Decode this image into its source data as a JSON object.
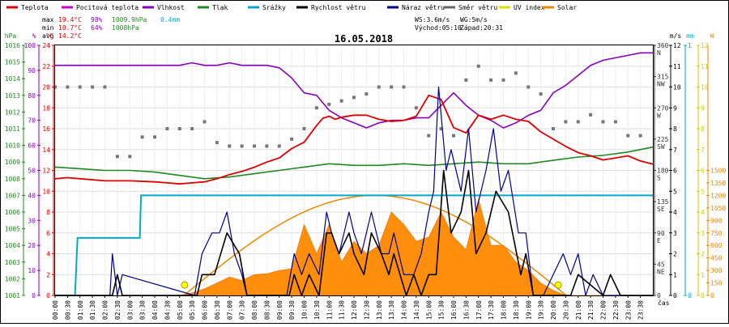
{
  "chart_data": {
    "type": "line",
    "title": "16.05.2018",
    "legend": [
      {
        "name": "Teplota",
        "color": "#dd0000"
      },
      {
        "name": "Pocitová teplota",
        "color": "#cc00cc"
      },
      {
        "name": "Vlhkost",
        "color": "#8800bb"
      },
      {
        "name": "Tlak",
        "color": "#228822"
      },
      {
        "name": "Srážky",
        "color": "#00aacc"
      },
      {
        "name": "Rychlost větru",
        "color": "#000000"
      },
      {
        "name": "Náraz větru",
        "color": "#000088"
      },
      {
        "name": "Směr větru",
        "color": "#666666"
      },
      {
        "name": "UV index",
        "color": "#dddd00"
      },
      {
        "name": "Solar",
        "color": "#ee8800"
      }
    ],
    "stats": {
      "max_label": "max",
      "max_temp": "19.4°C",
      "max_hum": "98%",
      "max_press": "1009.9hPa",
      "max_rain": "0.4mm",
      "min_label": "min",
      "min_temp": "10.7°C",
      "min_hum": "64%",
      "min_press": "1008hPa",
      "avg_label": "avg",
      "avg_temp": "14.2°C"
    },
    "info": {
      "ws": "WS:3.6m/s",
      "wg": "WG:5m/s",
      "sunrise": "Východ:05:10",
      "sunset": "Západ:20:31"
    },
    "axes": {
      "hpa_unit": "hPa",
      "pct_unit": "%",
      "c_unit": "°C",
      "ms_unit": "m/s",
      "mm_unit": "mm",
      "w_unit": "W",
      "hpa": [
        "1001",
        "1002",
        "1003",
        "1004",
        "1005",
        "1006",
        "1007",
        "1008",
        "1009",
        "1010",
        "1011",
        "1012",
        "1013",
        "1014",
        "1015",
        "1016"
      ],
      "pct": [
        "0",
        "10",
        "20",
        "30",
        "40",
        "50",
        "60",
        "70",
        "80",
        "90",
        "100"
      ],
      "temp": [
        "0",
        "2",
        "4",
        "6",
        "8",
        "10",
        "12",
        "14",
        "16",
        "18",
        "20",
        "22",
        "24"
      ],
      "dir": [
        "0",
        "45",
        "90",
        "135",
        "180",
        "225",
        "270",
        "315",
        "360"
      ],
      "dir_names": [
        "",
        "NE",
        "E",
        "SE",
        "S",
        "SW",
        "W",
        "NW",
        "N"
      ],
      "ms": [
        "0",
        "1",
        "2",
        "3",
        "4",
        "5",
        "6",
        "7",
        "8",
        "9",
        "10",
        "11",
        "12"
      ],
      "mm": [
        "0",
        "1"
      ],
      "solar": [
        "0",
        "150",
        "300",
        "450",
        "600",
        "750",
        "900",
        "1050",
        "1200",
        "1350",
        "1500"
      ],
      "uv": [
        "0",
        "1",
        "2",
        "3",
        "4",
        "5",
        "6",
        "7",
        "8",
        "9",
        "10",
        "11",
        "12"
      ],
      "time": [
        "00:00",
        "00:30",
        "01:00",
        "01:30",
        "02:00",
        "02:30",
        "03:00",
        "03:30",
        "04:00",
        "04:30",
        "05:00",
        "05:30",
        "06:00",
        "06:30",
        "07:00",
        "07:30",
        "08:00",
        "08:30",
        "09:00",
        "09:30",
        "10:00",
        "10:30",
        "11:00",
        "11:30",
        "12:00",
        "12:30",
        "13:00",
        "13:30",
        "14:00",
        "14:30",
        "15:00",
        "15:30",
        "16:00",
        "16:30",
        "17:00",
        "17:30",
        "18:00",
        "18:30",
        "19:00",
        "19:30",
        "20:00",
        "20:30",
        "21:00",
        "21:30",
        "22:00",
        "22:30",
        "23:00",
        "23:30"
      ],
      "cas": "čas"
    },
    "x_range": [
      0,
      24
    ],
    "temperature": {
      "x": [
        0,
        0.5,
        1,
        2,
        3,
        4,
        4.5,
        5,
        5.5,
        6,
        6.5,
        7,
        7.5,
        8,
        8.5,
        9,
        9.5,
        10,
        10.5,
        10.75,
        11,
        11.25,
        11.5,
        12,
        12.5,
        13,
        13.5,
        14,
        14.5,
        15,
        15.5,
        16,
        16.5,
        17,
        17.5,
        18,
        18.5,
        19,
        19.5,
        20,
        20.5,
        21,
        21.5,
        22,
        22.5,
        23,
        23.5,
        24
      ],
      "y": [
        11.2,
        11.3,
        11.2,
        11.0,
        11.0,
        10.9,
        10.8,
        10.7,
        10.8,
        10.9,
        11.2,
        11.6,
        11.9,
        12.3,
        12.8,
        13.2,
        14.1,
        14.7,
        16.3,
        17.0,
        17.2,
        16.9,
        17.1,
        17.3,
        17.3,
        16.9,
        16.7,
        16.8,
        17.2,
        19.2,
        18.8,
        16.1,
        15.6,
        17.3,
        16.9,
        17.3,
        16.9,
        16.7,
        15.7,
        15.0,
        14.3,
        13.7,
        13.4,
        13.0,
        13.2,
        13.4,
        12.9,
        12.6
      ]
    },
    "humidity": {
      "x": [
        0,
        1,
        2,
        3,
        4,
        5,
        5.5,
        6,
        6.5,
        7,
        7.5,
        8,
        8.5,
        9,
        9.5,
        10,
        10.5,
        11,
        11.5,
        12,
        12.5,
        13,
        13.5,
        14,
        14.5,
        15,
        15.5,
        16,
        16.5,
        17,
        17.5,
        18,
        18.5,
        19,
        19.5,
        20,
        20.5,
        21,
        21.5,
        22,
        22.5,
        23,
        23.5,
        24
      ],
      "y": [
        92,
        92,
        92,
        92,
        92,
        92,
        93,
        92,
        92,
        93,
        92,
        92,
        92,
        91,
        87,
        81,
        80,
        74,
        71,
        69,
        67,
        69,
        70,
        70,
        71,
        71,
        76,
        81,
        76,
        72,
        70,
        67,
        69,
        72,
        74,
        81,
        84,
        88,
        92,
        94,
        95,
        96,
        97,
        97
      ]
    },
    "pressure": {
      "x": [
        0,
        1,
        2,
        3,
        4,
        5,
        6,
        7,
        8,
        9,
        10,
        11,
        12,
        13,
        14,
        15,
        16,
        17,
        18,
        19,
        20,
        21,
        22,
        23,
        24
      ],
      "y": [
        1008.7,
        1008.6,
        1008.5,
        1008.5,
        1008.4,
        1008.2,
        1008.0,
        1008.1,
        1008.3,
        1008.5,
        1008.7,
        1008.9,
        1008.8,
        1008.8,
        1008.9,
        1008.8,
        1008.9,
        1009.0,
        1008.9,
        1008.9,
        1009.1,
        1009.3,
        1009.4,
        1009.6,
        1009.9
      ]
    },
    "rain_total_mm": {
      "x": [
        0,
        0.8,
        0.9,
        3.4,
        3.45,
        24
      ],
      "y": [
        0,
        0,
        0.23,
        0.23,
        0.4,
        0.4
      ]
    },
    "wind_speed": {
      "x": [
        0,
        2.3,
        2.5,
        2.7,
        5.7,
        5.9,
        6.4,
        6.9,
        7.4,
        7.7,
        9.4,
        9.6,
        9.9,
        10.2,
        10.6,
        10.9,
        11.1,
        11.4,
        11.8,
        12.0,
        12.4,
        12.7,
        13.1,
        13.4,
        13.6,
        14.1,
        14.4,
        14.7,
        15.0,
        15.3,
        15.6,
        15.9,
        16.3,
        16.6,
        16.9,
        17.3,
        17.7,
        18.2,
        18.7,
        18.9,
        19.2,
        20.0,
        20.7,
        21.0,
        22.0,
        22.3,
        22.7,
        24
      ],
      "y": [
        0,
        0,
        1,
        0,
        0,
        1,
        1,
        3,
        2,
        0,
        0,
        1,
        0,
        1,
        0,
        3,
        3,
        2,
        3,
        2,
        1,
        3,
        2,
        1,
        2,
        0,
        1,
        0,
        1,
        1,
        6,
        3,
        4,
        6,
        2,
        3,
        5,
        4,
        1,
        2,
        0,
        0,
        0,
        1,
        0,
        1,
        0,
        0
      ]
    },
    "wind_gust": {
      "x": [
        0,
        2.2,
        2.3,
        2.5,
        2.7,
        5.6,
        5.9,
        6.3,
        6.6,
        6.9,
        7.2,
        7.5,
        7.7,
        9.3,
        9.6,
        9.9,
        10.2,
        10.6,
        10.9,
        11.1,
        11.4,
        11.8,
        12.0,
        12.3,
        12.7,
        13.1,
        13.4,
        13.6,
        14.0,
        14.4,
        14.7,
        15.0,
        15.2,
        15.4,
        15.7,
        15.9,
        16.3,
        16.6,
        16.9,
        17.3,
        17.6,
        17.9,
        18.2,
        18.6,
        18.9,
        19.2,
        19.6,
        20.0,
        20.4,
        20.7,
        21.0,
        21.3,
        21.6,
        22.0,
        24
      ],
      "y": [
        0,
        0,
        2,
        0,
        1,
        0,
        2,
        3,
        3,
        4,
        2,
        1,
        0,
        0,
        2,
        1,
        2,
        1,
        4,
        3,
        2,
        4,
        3,
        2,
        4,
        2,
        2,
        3,
        1,
        1,
        2,
        4,
        5,
        10,
        6,
        7,
        5,
        8,
        4,
        6,
        8,
        5,
        6,
        3,
        3,
        0,
        0,
        1,
        2,
        1,
        2,
        0,
        1,
        0,
        0
      ]
    },
    "solar": {
      "x": [
        0,
        5.0,
        5.5,
        6,
        6.5,
        7,
        7.5,
        8,
        8.5,
        9,
        9.5,
        10,
        10.5,
        11,
        11.5,
        12,
        12.5,
        13,
        13.5,
        14,
        14.5,
        15,
        15.5,
        16,
        16.5,
        17,
        17.5,
        18,
        18.5,
        19,
        19.5,
        20,
        20.5,
        24
      ],
      "y": [
        0,
        0,
        30,
        80,
        150,
        220,
        180,
        250,
        260,
        300,
        320,
        850,
        500,
        850,
        400,
        650,
        500,
        600,
        1000,
        850,
        650,
        700,
        1000,
        700,
        550,
        1150,
        600,
        600,
        400,
        300,
        150,
        60,
        0,
        0
      ]
    },
    "solar_curve_max": 1200,
    "uv_markers": [
      {
        "x": 5.2,
        "y": 0.5
      },
      {
        "x": 20.2,
        "y": 0.5
      }
    ],
    "wind_dir": {
      "x": [
        0,
        0.5,
        1,
        1.5,
        2,
        2.5,
        3,
        3.5,
        4,
        4.5,
        5,
        5.5,
        6,
        6.5,
        7,
        7.5,
        8,
        8.5,
        9,
        9.5,
        10,
        10.5,
        11,
        11.5,
        12,
        12.5,
        13,
        13.5,
        14,
        14.5,
        15,
        15.5,
        16,
        16.5,
        17,
        17.5,
        18,
        18.5,
        19,
        19.5,
        20,
        20.5,
        21,
        21.5,
        22,
        22.5,
        23,
        23.5
      ],
      "y": [
        300,
        300,
        300,
        300,
        300,
        200,
        200,
        228,
        228,
        240,
        240,
        240,
        250,
        220,
        215,
        215,
        215,
        215,
        215,
        225,
        240,
        270,
        275,
        280,
        285,
        290,
        300,
        300,
        300,
        270,
        230,
        240,
        230,
        310,
        330,
        310,
        310,
        320,
        300,
        290,
        240,
        250,
        250,
        260,
        250,
        250,
        230,
        230
      ]
    }
  }
}
